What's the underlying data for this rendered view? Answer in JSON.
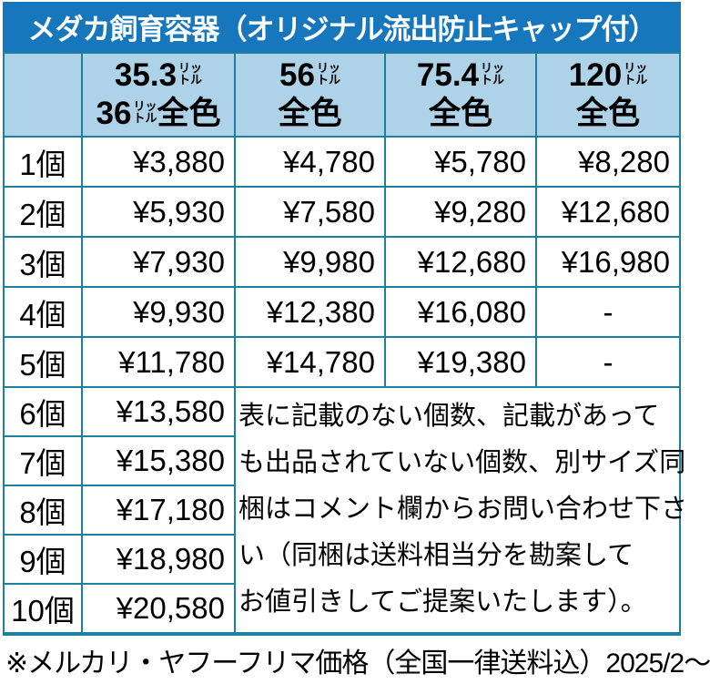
{
  "title": "メダカ飼育容器（オリジナル流出防止キャップ付）",
  "table": {
    "header": {
      "corner": "",
      "unit_top": "リッ",
      "unit_bottom": "トル",
      "col1": {
        "size_a": "35.3",
        "size_b": "36",
        "color_label": "全色"
      },
      "col2": {
        "size": "56",
        "color_label": "全色"
      },
      "col3": {
        "size": "75.4",
        "color_label": "全色"
      },
      "col4": {
        "size": "120",
        "color_label": "全色"
      }
    },
    "rows": [
      {
        "qty": "1個",
        "prices": [
          "¥3,880",
          "¥4,780",
          "¥5,780",
          "¥8,280"
        ]
      },
      {
        "qty": "2個",
        "prices": [
          "¥5,930",
          "¥7,580",
          "¥9,280",
          "¥12,680"
        ]
      },
      {
        "qty": "3個",
        "prices": [
          "¥7,930",
          "¥9,980",
          "¥12,680",
          "¥16,980"
        ]
      },
      {
        "qty": "4個",
        "prices": [
          "¥9,930",
          "¥12,380",
          "¥16,080",
          "-"
        ]
      },
      {
        "qty": "5個",
        "prices": [
          "¥11,780",
          "¥14,780",
          "¥19,380",
          "-"
        ]
      },
      {
        "qty": "6個",
        "prices": [
          "¥13,580"
        ]
      },
      {
        "qty": "7個",
        "prices": [
          "¥15,380"
        ]
      },
      {
        "qty": "8個",
        "prices": [
          "¥17,180"
        ]
      },
      {
        "qty": "9個",
        "prices": [
          "¥18,980"
        ]
      },
      {
        "qty": "10個",
        "prices": [
          "¥20,580"
        ]
      }
    ],
    "note_lines": [
      "表に記載のない個数、記載があって",
      "も出品されていない個数、別サイズ同",
      "梱はコメント欄からお問い合わせ下さ",
      "い（同梱は送料相当分を勘案して",
      "お値引きしてご提案いたします）。"
    ]
  },
  "footer": "※メルカリ・ヤフーフリマ価格（全国一律送料込）2025/2～",
  "colors": {
    "title_bg": "#1777BD",
    "header_bg": "#AED3E8",
    "grid_line": "#1E7FA0",
    "cell_bg": "#FFFFFF",
    "text": "#000000",
    "title_text": "#FFFFFF"
  }
}
